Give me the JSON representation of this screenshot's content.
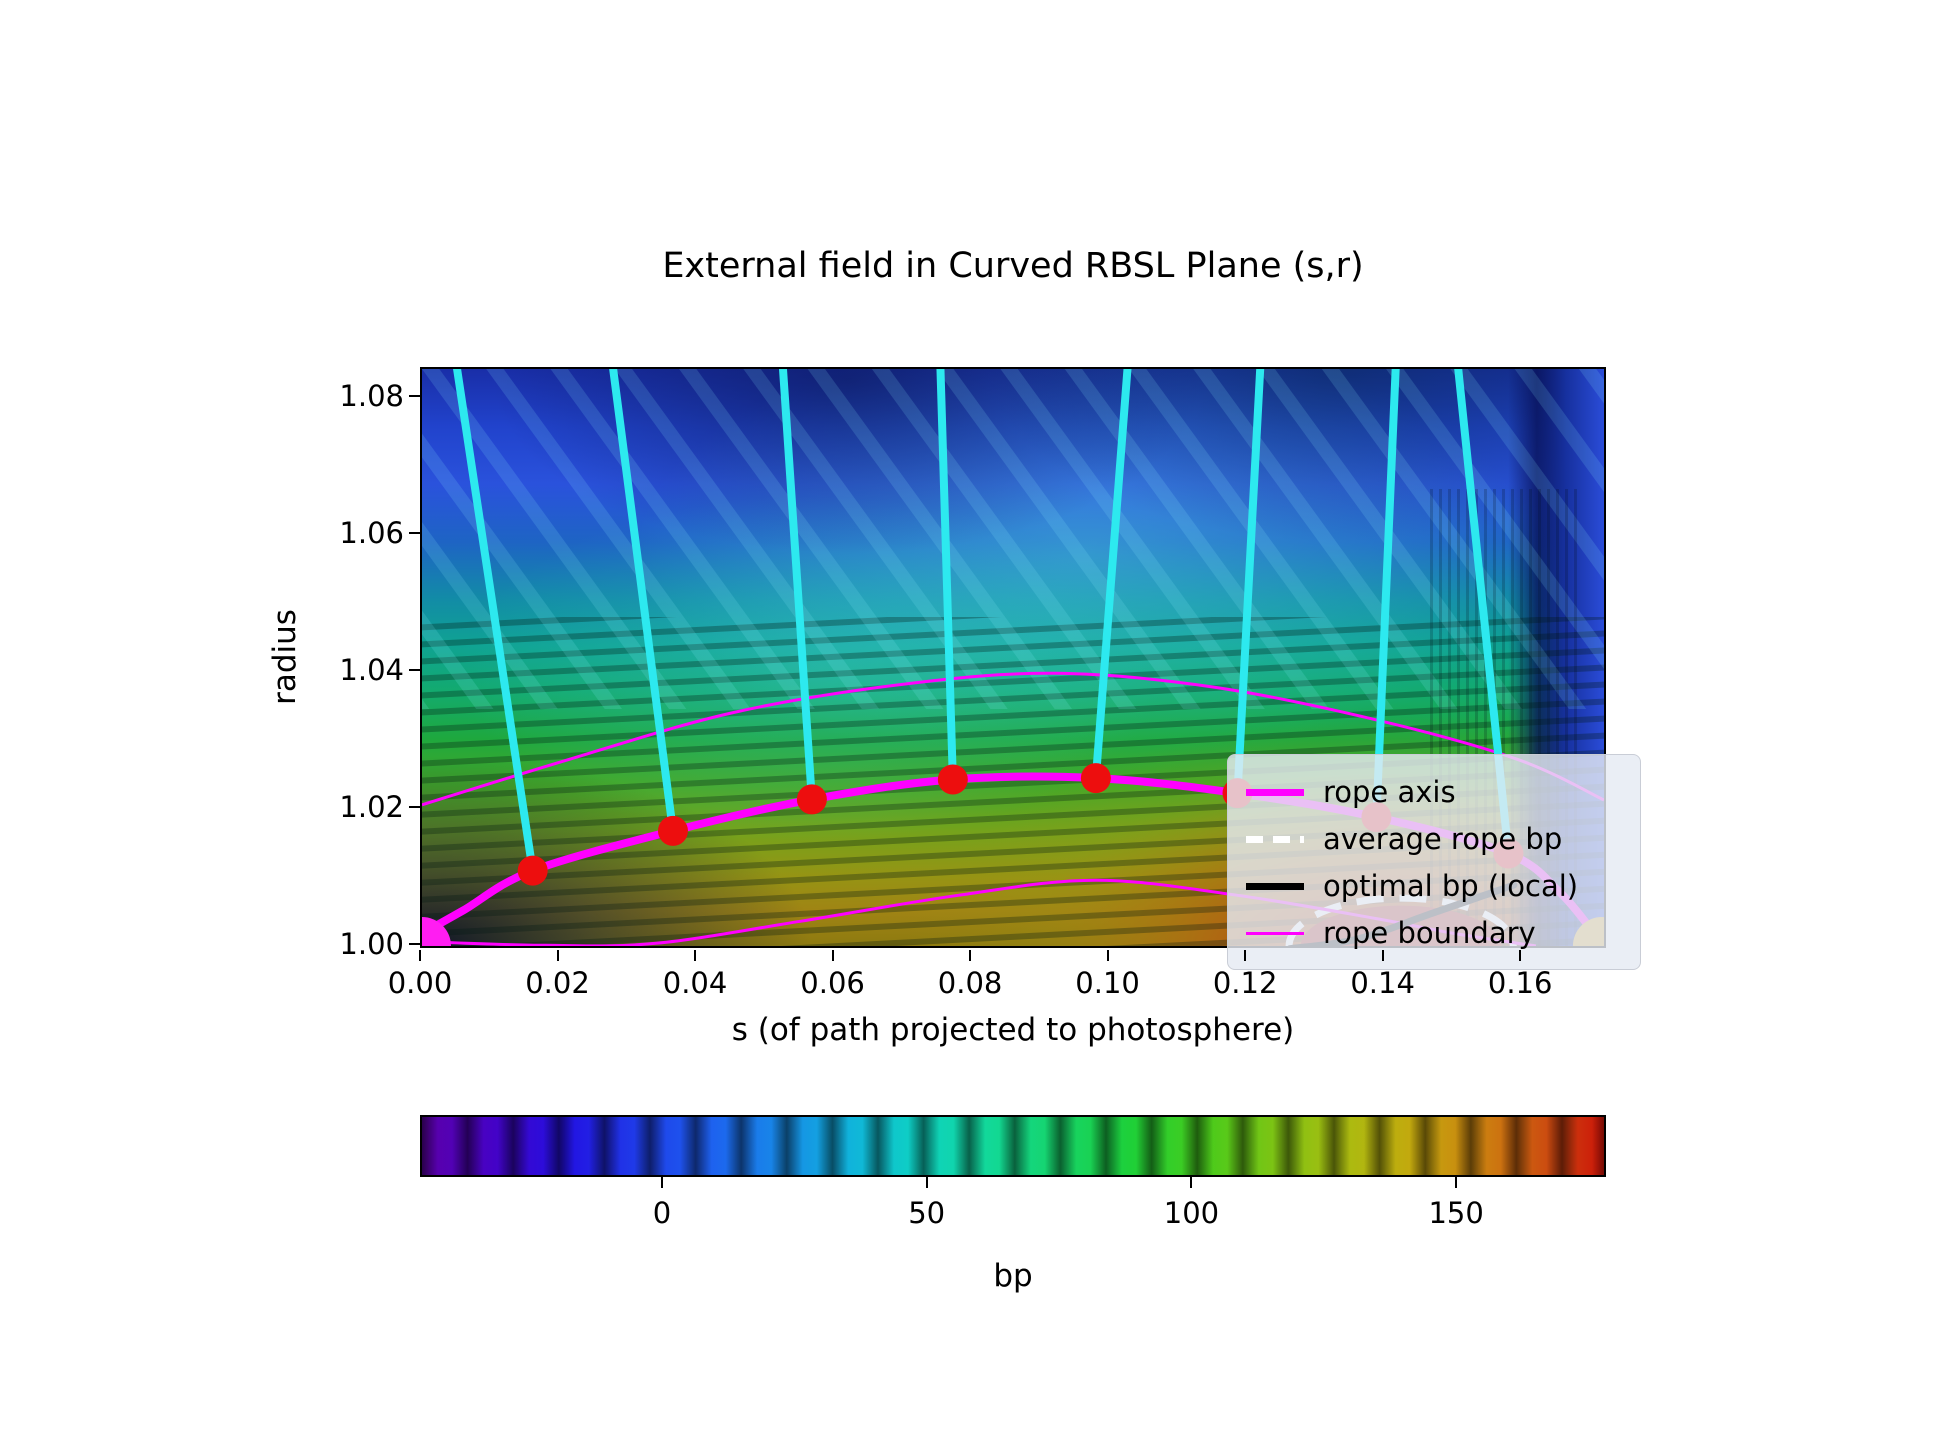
{
  "figure": {
    "background": "#ffffff"
  },
  "legend": {
    "items": [
      {
        "label": "rope axis",
        "color": "#ff00ff",
        "style": "thick"
      },
      {
        "label": "average rope bp",
        "color": "#ffffff",
        "style": "dashed"
      },
      {
        "label": "optimal bp (local)",
        "color": "#000000",
        "style": "thick"
      },
      {
        "label": "rope boundary",
        "color": "#ff00ff",
        "style": "thin"
      }
    ]
  },
  "chart_data": {
    "type": "heatmap",
    "title": "External field in Curved RBSL Plane (s,r)",
    "xlabel": "s (of path projected to photosphere)",
    "ylabel": "radius",
    "xlim": [
      0,
      0.1719
    ],
    "ylim": [
      1.0,
      1.0842
    ],
    "xticks": [
      0.0,
      0.02,
      0.04,
      0.06,
      0.08,
      0.1,
      0.12,
      0.14,
      0.16
    ],
    "xtick_labels": [
      "0.00",
      "0.02",
      "0.04",
      "0.06",
      "0.08",
      "0.10",
      "0.12",
      "0.14",
      "0.16"
    ],
    "yticks": [
      1.0,
      1.02,
      1.04,
      1.06,
      1.08
    ],
    "ytick_labels": [
      "1.00",
      "1.02",
      "1.04",
      "1.06",
      "1.08"
    ],
    "grid": false,
    "legend_position": "upper center inside axes",
    "field_summary": "banded rainbow colormap of external field bp; negative blue region upper-left, wavy cyan-green bands mid-plot, maximum dark-red spot at photosphere near s=0.142",
    "colorbar": {
      "label": "bp",
      "ticks": [
        0,
        50,
        100,
        150
      ],
      "tick_labels": [
        "0",
        "50",
        "100",
        "150"
      ],
      "vmin": -45.7,
      "vmax": 178.3,
      "stops": [
        [
          0.0,
          "#5c00a8"
        ],
        [
          0.06,
          "#4502c6"
        ],
        [
          0.12,
          "#2310e2"
        ],
        [
          0.18,
          "#1f3ae8"
        ],
        [
          0.24,
          "#1e5ef0"
        ],
        [
          0.3,
          "#1887e8"
        ],
        [
          0.36,
          "#10b2dc"
        ],
        [
          0.42,
          "#0ed2c2"
        ],
        [
          0.48,
          "#12d898"
        ],
        [
          0.54,
          "#16d468"
        ],
        [
          0.6,
          "#1ed038"
        ],
        [
          0.66,
          "#46cc1c"
        ],
        [
          0.72,
          "#7cc414"
        ],
        [
          0.78,
          "#aabc10"
        ],
        [
          0.84,
          "#c4a80e"
        ],
        [
          0.9,
          "#cc7e10"
        ],
        [
          0.96,
          "#cc4410"
        ],
        [
          1.0,
          "#cc1408"
        ]
      ]
    },
    "rope_axis": {
      "name": "rope axis",
      "color": "#ff00ff",
      "width": 8,
      "points": [
        [
          0.0,
          1.0018
        ],
        [
          0.006,
          1.0052
        ],
        [
          0.0161,
          1.011
        ],
        [
          0.0365,
          1.0168
        ],
        [
          0.0567,
          1.0214
        ],
        [
          0.0772,
          1.0243
        ],
        [
          0.098,
          1.0245
        ],
        [
          0.1186,
          1.0223
        ],
        [
          0.1388,
          1.0188
        ],
        [
          0.158,
          1.0135
        ],
        [
          0.1655,
          1.0078
        ],
        [
          0.1705,
          1.0018
        ],
        [
          0.1718,
          1.0
        ]
      ]
    },
    "rope_axis_nodes": {
      "name": "rope axis nodes",
      "color": "#ed0e0e",
      "radius_px": 15,
      "points": [
        [
          0.0161,
          1.011
        ],
        [
          0.0365,
          1.0168
        ],
        [
          0.0567,
          1.0214
        ],
        [
          0.0772,
          1.0243
        ],
        [
          0.098,
          1.0245
        ],
        [
          0.1186,
          1.0223
        ],
        [
          0.1388,
          1.0188
        ],
        [
          0.158,
          1.0135
        ]
      ]
    },
    "rope_boundary_upper": {
      "name": "rope boundary (upper)",
      "color": "#ff00ff",
      "width": 3,
      "points": [
        [
          0.0,
          1.0206
        ],
        [
          0.02,
          1.0268
        ],
        [
          0.045,
          1.034
        ],
        [
          0.07,
          1.0382
        ],
        [
          0.092,
          1.0398
        ],
        [
          0.115,
          1.0378
        ],
        [
          0.1388,
          1.033
        ],
        [
          0.1594,
          1.0272
        ],
        [
          0.1719,
          1.0213
        ]
      ]
    },
    "rope_boundary_lower": {
      "name": "rope boundary (lower)",
      "color": "#ff00ff",
      "width": 3,
      "points": [
        [
          0.0012,
          1.0006
        ],
        [
          0.018,
          1.0001
        ],
        [
          0.034,
          1.0004
        ],
        [
          0.055,
          1.0036
        ],
        [
          0.078,
          1.0074
        ],
        [
          0.098,
          1.0096
        ],
        [
          0.1186,
          1.0074
        ],
        [
          0.1388,
          1.004
        ],
        [
          0.1497,
          1.0019
        ],
        [
          0.162,
          1.0
        ]
      ]
    },
    "field_lines": {
      "name": "traced field lines",
      "color": "#2de9ef",
      "width": 8,
      "top_r": 1.0842,
      "tops_s": [
        0.0051,
        0.0278,
        0.0525,
        0.0754,
        0.1026,
        0.1219,
        0.1416,
        0.1507
      ],
      "ends_at_nodes": true
    },
    "average_rope_bp": {
      "name": "average rope bp",
      "style": "dashed",
      "color": "#ffffff",
      "width": 7,
      "ellipse_center": [
        0.1424,
        1.0
      ],
      "rx": 0.0163,
      "ry": 0.007
    },
    "bp_core": {
      "name": "bp maximum core",
      "color": "#a81d12",
      "ellipse_center": [
        0.1424,
        1.0
      ],
      "rx": 0.0146,
      "ry": 0.0059
    },
    "optimal_bp_local": {
      "name": "optimal bp (local)",
      "color": "#000000",
      "width": 7,
      "points": [
        [
          0.1262,
          0.9996
        ],
        [
          0.136,
          1.001
        ],
        [
          0.147,
          1.0048
        ],
        [
          0.1588,
          1.0089
        ]
      ]
    },
    "footpoints": [
      {
        "name": "left footpoint",
        "center": [
          0.0,
          1.0
        ],
        "radius_px": 29,
        "color": "#ff1df2"
      },
      {
        "name": "right footpoint",
        "center": [
          0.1716,
          1.0
        ],
        "radius_px": 29,
        "color": "#d9a62c"
      }
    ]
  }
}
